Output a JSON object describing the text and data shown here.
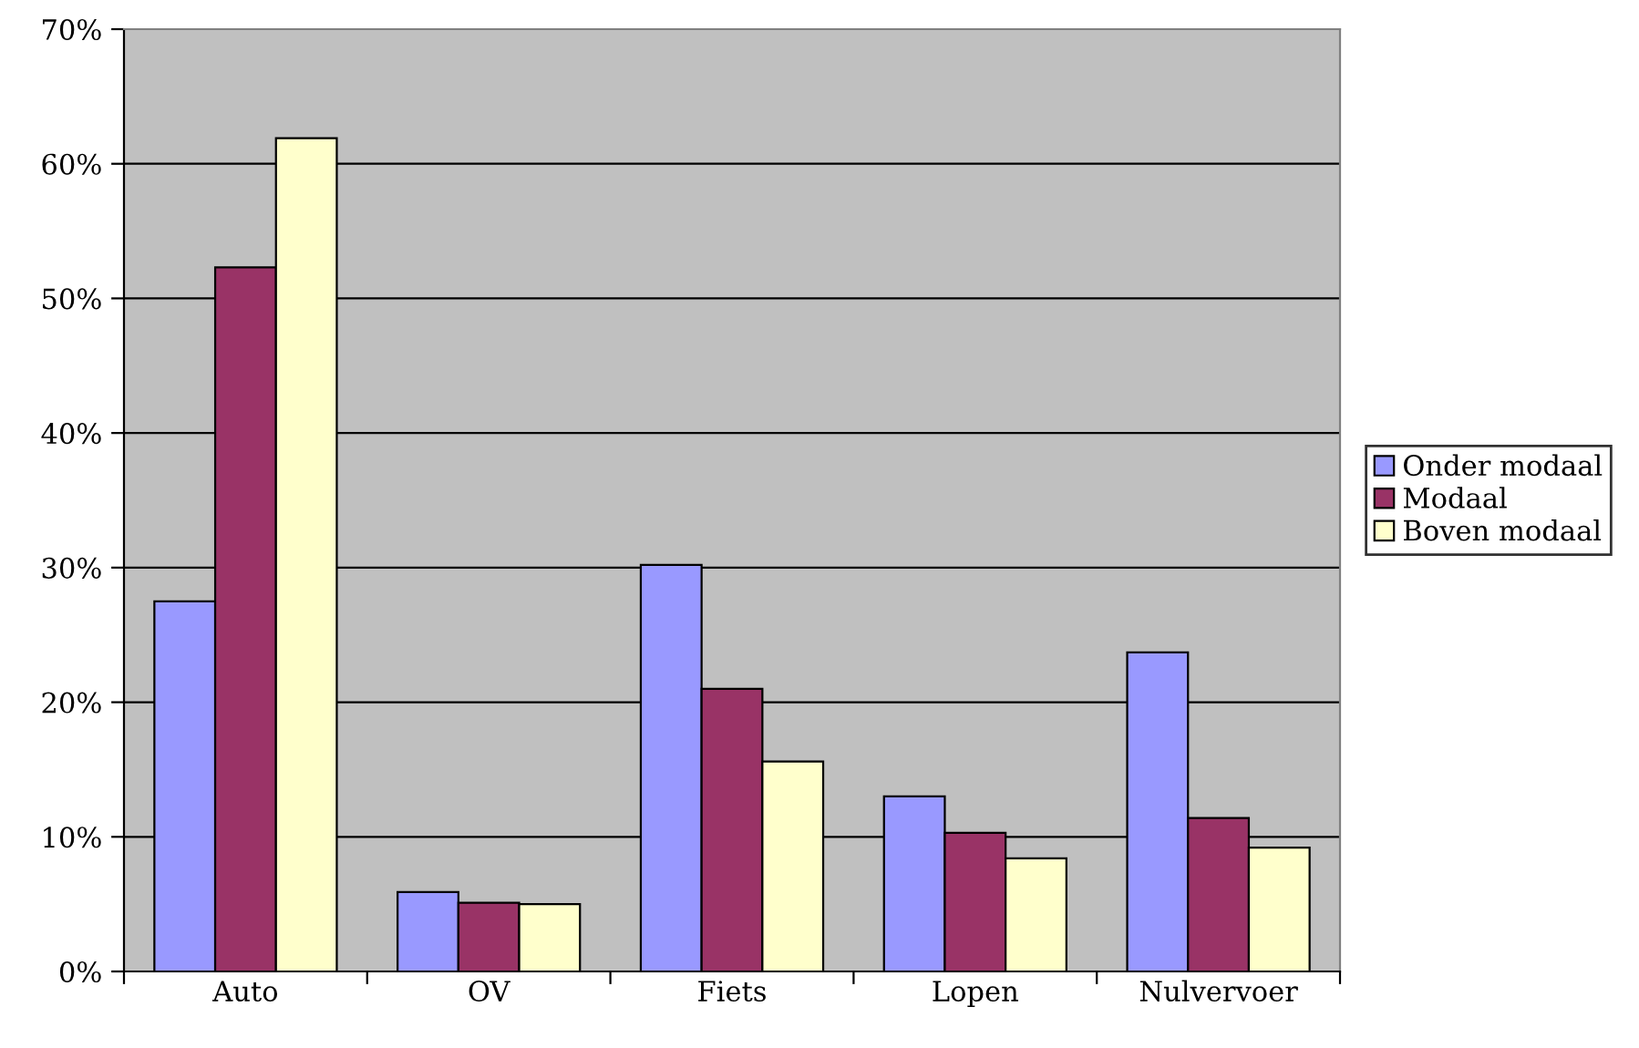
{
  "chart_data": {
    "type": "bar",
    "categories": [
      "Auto",
      "OV",
      "Fiets",
      "Lopen",
      "Nulvervoer"
    ],
    "series": [
      {
        "name": "Onder modaal",
        "color": "#9999ff",
        "values": [
          27.5,
          5.9,
          30.2,
          13.0,
          23.7
        ]
      },
      {
        "name": "Modaal",
        "color": "#993366",
        "values": [
          52.3,
          5.1,
          21.0,
          10.3,
          11.4
        ]
      },
      {
        "name": "Boven modaal",
        "color": "#ffffcc",
        "values": [
          61.9,
          5.0,
          15.6,
          8.4,
          9.2
        ]
      }
    ],
    "ylim": [
      0,
      70
    ],
    "yticks": [
      {
        "value": 0,
        "label": "0%"
      },
      {
        "value": 10,
        "label": "10%"
      },
      {
        "value": 20,
        "label": "20%"
      },
      {
        "value": 30,
        "label": "30%"
      },
      {
        "value": 40,
        "label": "40%"
      },
      {
        "value": 50,
        "label": "50%"
      },
      {
        "value": 60,
        "label": "60%"
      },
      {
        "value": 70,
        "label": "70%"
      }
    ],
    "grid": "y",
    "legend": "right"
  }
}
